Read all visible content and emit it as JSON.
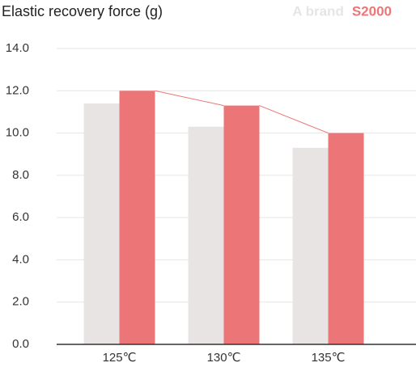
{
  "chart_data": {
    "type": "bar",
    "title": "Elastic recovery force (g)",
    "categories": [
      "125℃",
      "130℃",
      "135℃"
    ],
    "series": [
      {
        "name": "A brand",
        "color": "#e9e4e4",
        "values": [
          11.4,
          10.3,
          9.3
        ],
        "connect": false
      },
      {
        "name": "S2000",
        "color": "#ec7677",
        "values": [
          12.0,
          11.3,
          10.0
        ],
        "connect": true
      }
    ],
    "ylim": [
      0,
      14
    ],
    "yticks": [
      {
        "value": 0,
        "label": "0.0"
      },
      {
        "value": 2,
        "label": "2.0"
      },
      {
        "value": 4,
        "label": "4.0"
      },
      {
        "value": 6,
        "label": "6.0"
      },
      {
        "value": 8,
        "label": "8.0"
      },
      {
        "value": 10,
        "label": "10.0"
      },
      {
        "value": 12,
        "label": "12.0"
      },
      {
        "value": 14,
        "label": "14.0"
      }
    ],
    "grid": true,
    "legend": "top-right"
  }
}
